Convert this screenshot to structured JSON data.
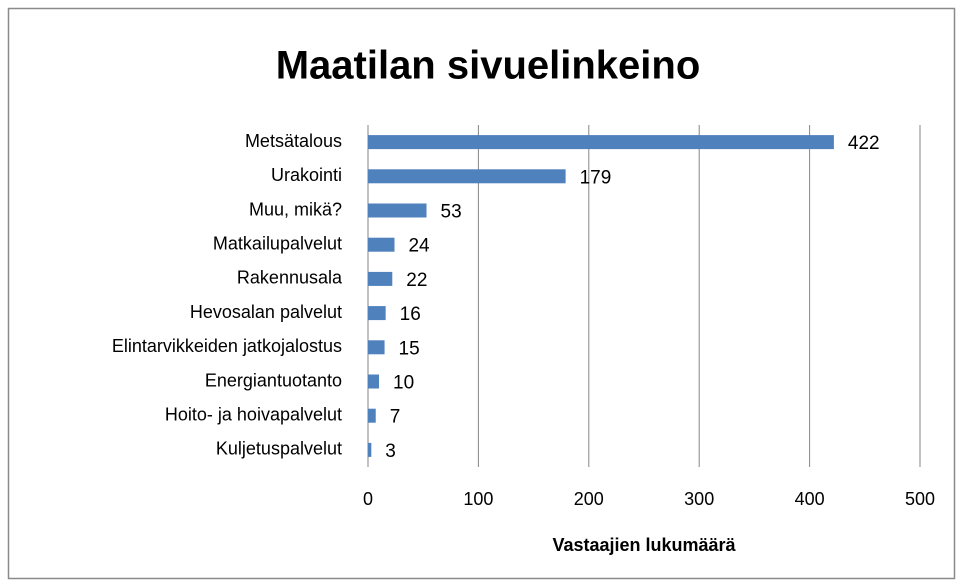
{
  "chart_data": {
    "type": "bar",
    "orientation": "horizontal",
    "title": "Maatilan sivuelinkeino",
    "x_label": "Vastaajien lukumäärä",
    "categories": [
      "Metsätalous",
      "Urakointi",
      "Muu, mikä?",
      "Matkailupalvelut",
      "Rakennusala",
      "Hevosalan palvelut",
      "Elintarvikkeiden jatkojalostus",
      "Energiantuotanto",
      "Hoito- ja hoivapalvelut",
      "Kuljetuspalvelut"
    ],
    "values": [
      422,
      179,
      53,
      24,
      22,
      16,
      15,
      10,
      7,
      3
    ],
    "color": "#4f81bd",
    "xlim": [
      0,
      500
    ],
    "xticks": [
      0,
      100,
      200,
      300,
      400,
      500
    ],
    "grid": true
  }
}
